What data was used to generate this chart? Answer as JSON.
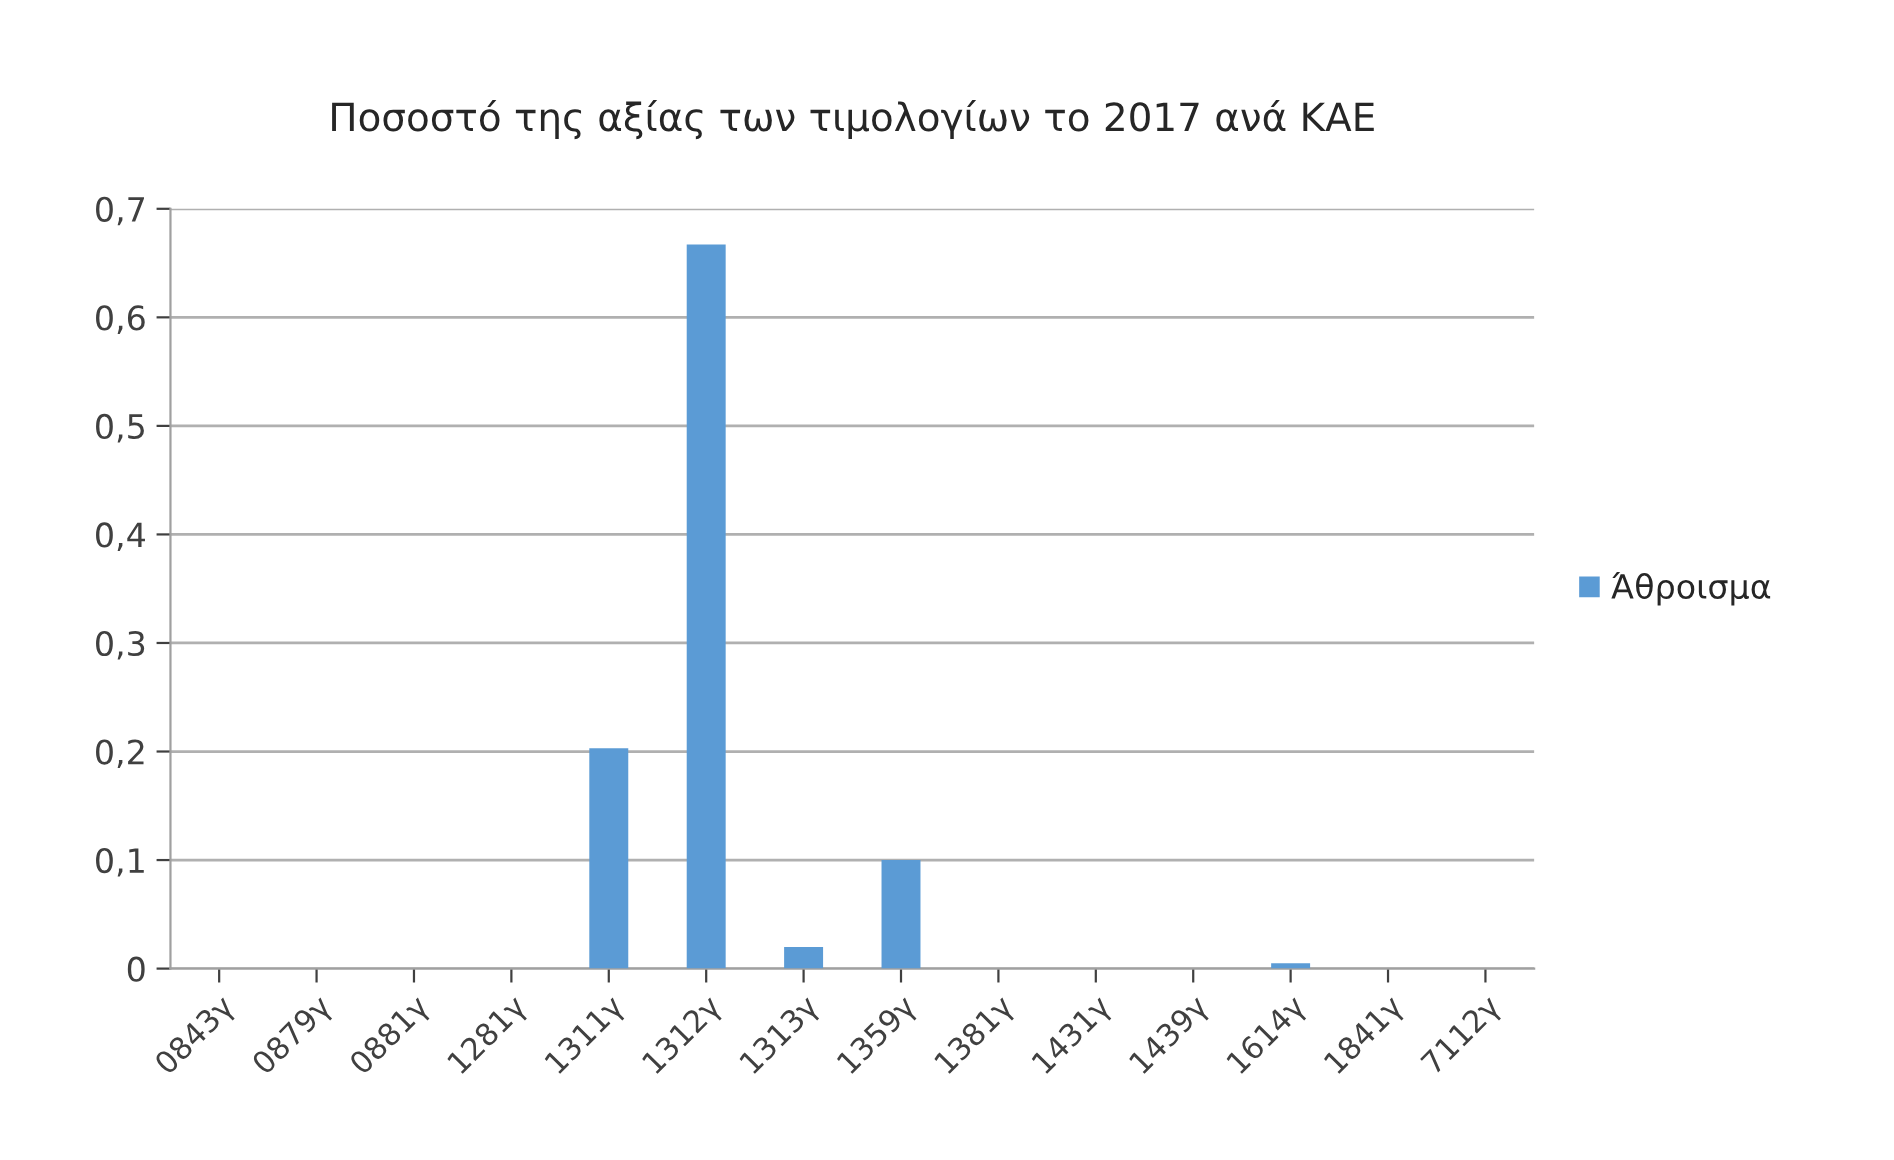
{
  "chart_data": {
    "type": "bar",
    "title": "Ποσοστό της αξίας των τιμολογίων το 2017 ανά ΚΑΕ",
    "categories": [
      "0843γ",
      "0879γ",
      "0881γ",
      "1281γ",
      "1311γ",
      "1312γ",
      "1313γ",
      "1359γ",
      "1381γ",
      "1431γ",
      "1439γ",
      "1614γ",
      "1841γ",
      "7112γ"
    ],
    "series": [
      {
        "name": "Άθροισμα",
        "color": "#5b9bd5",
        "values": [
          0,
          0,
          0,
          0,
          0.203,
          0.667,
          0.02,
          0.1,
          0,
          0,
          0,
          0.005,
          0,
          0
        ]
      }
    ],
    "ylim": [
      0,
      0.7
    ],
    "yticks": [
      0,
      {
        "value": 0.1,
        "label": "0,1"
      },
      {
        "value": 0.2,
        "label": "0,2"
      },
      {
        "value": 0.3,
        "label": "0,3"
      },
      {
        "value": 0.4,
        "label": "0,4"
      },
      {
        "value": 0.5,
        "label": "0,5"
      },
      {
        "value": 0.6,
        "label": "0,6"
      },
      {
        "value": 0.7,
        "label": "0,7"
      }
    ],
    "grid": "y",
    "legend": "right"
  }
}
